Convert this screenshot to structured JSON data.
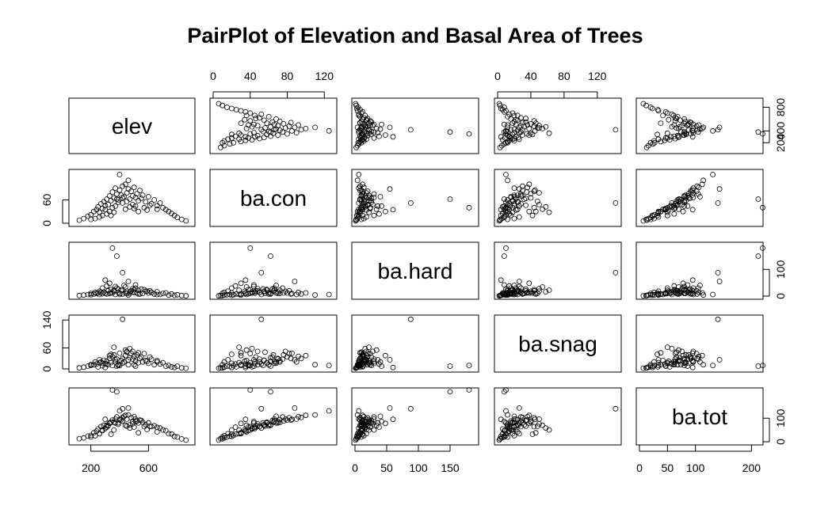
{
  "chart_data": {
    "type": "scatter-matrix",
    "title": "PairPlot of Elevation and Basal Area of Trees",
    "variables": [
      {
        "name": "elev",
        "range": [
          70,
          900
        ]
      },
      {
        "name": "ba.con",
        "range": [
          0,
          130
        ]
      },
      {
        "name": "ba.hard",
        "range": [
          0,
          190
        ]
      },
      {
        "name": "ba.snag",
        "range": [
          0,
          145
        ]
      },
      {
        "name": "ba.tot",
        "range": [
          0,
          215
        ]
      }
    ],
    "axes": {
      "top": [
        {
          "col": 1,
          "ticks": [
            "0",
            "40",
            "80",
            "120"
          ],
          "values": [
            0,
            40,
            80,
            120
          ]
        },
        {
          "col": 3,
          "ticks": [
            "0",
            "40",
            "80",
            "120"
          ],
          "values": [
            0,
            40,
            80,
            120
          ]
        }
      ],
      "bottom": [
        {
          "col": 0,
          "ticks": [
            "200",
            "600"
          ],
          "values": [
            200,
            600
          ]
        },
        {
          "col": 2,
          "ticks": [
            "0",
            "50",
            "100",
            "150"
          ],
          "values": [
            0,
            50,
            100,
            150
          ]
        },
        {
          "col": 4,
          "ticks": [
            "0",
            "50",
            "100",
            "200"
          ],
          "values": [
            0,
            50,
            100,
            200
          ]
        }
      ],
      "left": [
        {
          "row": 1,
          "ticks": [
            "0",
            "60"
          ],
          "values": [
            0,
            60
          ]
        },
        {
          "row": 3,
          "ticks": [
            "0",
            "60",
            "140"
          ],
          "values": [
            0,
            60,
            140
          ]
        }
      ],
      "right": [
        {
          "row": 0,
          "ticks": [
            "200",
            "400",
            "800"
          ],
          "values": [
            200,
            400,
            800
          ]
        },
        {
          "row": 2,
          "ticks": [
            "0",
            "100"
          ],
          "values": [
            0,
            100
          ]
        },
        {
          "row": 4,
          "ticks": [
            "0",
            "100"
          ],
          "values": [
            0,
            100
          ]
        }
      ]
    },
    "observations": [
      [
        120,
        8,
        2,
        3,
        13
      ],
      [
        150,
        12,
        4,
        5,
        16
      ],
      [
        180,
        18,
        6,
        8,
        24
      ],
      [
        200,
        22,
        5,
        10,
        27
      ],
      [
        220,
        30,
        8,
        12,
        38
      ],
      [
        240,
        35,
        10,
        14,
        45
      ],
      [
        250,
        42,
        12,
        6,
        54
      ],
      [
        260,
        28,
        6,
        18,
        34
      ],
      [
        270,
        50,
        14,
        20,
        64
      ],
      [
        280,
        38,
        9,
        9,
        47
      ],
      [
        290,
        55,
        15,
        25,
        70
      ],
      [
        300,
        45,
        11,
        15,
        56
      ],
      [
        310,
        62,
        8,
        22,
        70
      ],
      [
        320,
        48,
        20,
        12,
        68
      ],
      [
        330,
        70,
        10,
        30,
        80
      ],
      [
        340,
        58,
        25,
        18,
        83
      ],
      [
        350,
        80,
        12,
        35,
        92
      ],
      [
        360,
        65,
        18,
        40,
        83
      ],
      [
        370,
        90,
        6,
        20,
        96
      ],
      [
        380,
        75,
        30,
        28,
        105
      ],
      [
        390,
        60,
        14,
        12,
        74
      ],
      [
        400,
        85,
        10,
        45,
        95
      ],
      [
        410,
        72,
        22,
        24,
        94
      ],
      [
        420,
        95,
        8,
        30,
        103
      ],
      [
        430,
        68,
        40,
        20,
        108
      ],
      [
        440,
        100,
        12,
        38,
        112
      ],
      [
        450,
        78,
        18,
        50,
        96
      ],
      [
        460,
        88,
        55,
        26,
        143
      ],
      [
        470,
        62,
        10,
        32,
        72
      ],
      [
        480,
        82,
        20,
        44,
        102
      ],
      [
        490,
        70,
        16,
        28,
        86
      ],
      [
        500,
        92,
        14,
        36,
        106
      ],
      [
        510,
        66,
        30,
        22,
        96
      ],
      [
        520,
        76,
        12,
        40,
        88
      ],
      [
        530,
        58,
        22,
        18,
        80
      ],
      [
        540,
        84,
        8,
        30,
        92
      ],
      [
        550,
        64,
        26,
        34,
        90
      ],
      [
        560,
        72,
        10,
        20,
        82
      ],
      [
        580,
        55,
        18,
        24,
        73
      ],
      [
        600,
        68,
        12,
        16,
        80
      ],
      [
        620,
        50,
        14,
        28,
        64
      ],
      [
        640,
        60,
        8,
        12,
        68
      ],
      [
        660,
        45,
        16,
        20,
        61
      ],
      [
        680,
        52,
        6,
        14,
        58
      ],
      [
        700,
        40,
        10,
        18,
        50
      ],
      [
        720,
        35,
        12,
        8,
        47
      ],
      [
        740,
        30,
        4,
        10,
        34
      ],
      [
        760,
        25,
        8,
        6,
        33
      ],
      [
        780,
        20,
        3,
        4,
        23
      ],
      [
        800,
        15,
        5,
        8,
        20
      ],
      [
        830,
        10,
        2,
        3,
        12
      ],
      [
        860,
        6,
        1,
        2,
        7
      ],
      [
        350,
        40,
        180,
        10,
        220
      ],
      [
        380,
        62,
        150,
        8,
        212
      ],
      [
        420,
        52,
        88,
        142,
        140
      ],
      [
        300,
        35,
        60,
        4,
        95
      ],
      [
        460,
        110,
        4,
        12,
        114
      ],
      [
        400,
        125,
        6,
        10,
        131
      ],
      [
        330,
        30,
        48,
        38,
        78
      ],
      [
        510,
        44,
        42,
        8,
        86
      ],
      [
        280,
        20,
        30,
        16,
        50
      ],
      [
        360,
        28,
        22,
        62,
        50
      ],
      [
        440,
        36,
        34,
        54,
        70
      ],
      [
        260,
        16,
        18,
        26,
        34
      ],
      [
        570,
        40,
        24,
        44,
        64
      ],
      [
        230,
        12,
        14,
        20,
        26
      ],
      [
        490,
        48,
        28,
        50,
        76
      ],
      [
        310,
        24,
        38,
        14,
        62
      ],
      [
        610,
        46,
        20,
        34,
        66
      ],
      [
        200,
        10,
        10,
        12,
        20
      ],
      [
        660,
        36,
        6,
        24,
        42
      ],
      [
        390,
        54,
        26,
        10,
        80
      ],
      [
        470,
        42,
        16,
        58,
        58
      ],
      [
        340,
        20,
        12,
        42,
        32
      ],
      [
        530,
        30,
        8,
        46,
        38
      ],
      [
        590,
        34,
        18,
        22,
        52
      ],
      [
        420,
        66,
        22,
        16,
        88
      ],
      [
        370,
        44,
        36,
        26,
        80
      ],
      [
        450,
        56,
        10,
        48,
        66
      ],
      [
        500,
        38,
        24,
        12,
        62
      ]
    ]
  }
}
